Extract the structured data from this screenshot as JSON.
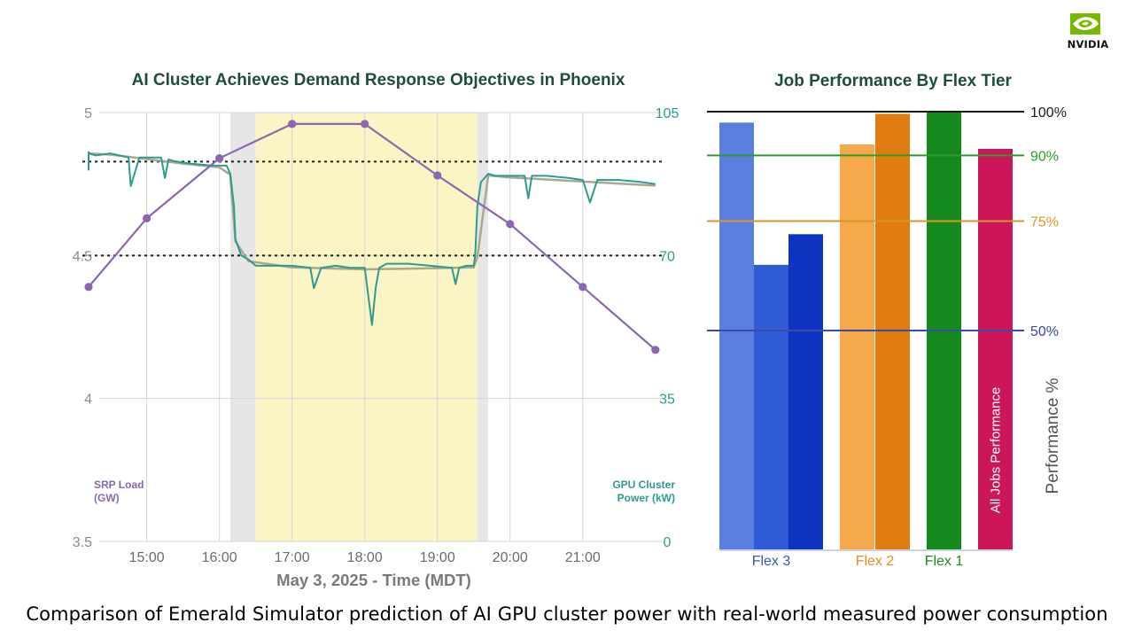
{
  "brand": {
    "logo_text": "NVIDIA",
    "eye_color": "#76b900"
  },
  "caption": "Comparison of Emerald Simulator prediction of AI GPU cluster power with real-world measured power consumption",
  "chart_data": [
    {
      "type": "line",
      "title": "AI Cluster Achieves Demand Response Objectives in Phoenix",
      "xlabel": "May 3, 2025 - Time (MDT)",
      "x_ticks": [
        "15:00",
        "16:00",
        "17:00",
        "18:00",
        "19:00",
        "20:00",
        "21:00"
      ],
      "x_range": [
        14.2,
        22.1
      ],
      "left_axis": {
        "label_line1": "SRP Load",
        "label_line2": "(GW)",
        "ticks": [
          "5",
          "4.5",
          "4",
          "3.5"
        ],
        "range": [
          3.5,
          5.0
        ],
        "color": "#8b67b3"
      },
      "right_axis": {
        "label_line1": "GPU Cluster",
        "label_line2": "Power (kW)",
        "ticks": [
          "105",
          "70",
          "35",
          "0"
        ],
        "range": [
          0,
          105
        ],
        "color": "#2e9a92"
      },
      "shaded_regions": [
        {
          "name": "ramp-down window",
          "from": 16.15,
          "to": 16.5,
          "color": "#e6e6e6"
        },
        {
          "name": "demand response event",
          "from": 16.5,
          "to": 19.55,
          "color": "#fbf4c5"
        },
        {
          "name": "ramp-up window",
          "from": 19.55,
          "to": 19.7,
          "color": "#e6e6e6"
        }
      ],
      "reference_lines": [
        {
          "name": "baseline power level",
          "axis": "right",
          "value": 93
        },
        {
          "name": "reduced power target",
          "axis": "right",
          "value": 70
        }
      ],
      "series": [
        {
          "name": "SRP Load",
          "axis": "left",
          "color": "#8b67b3",
          "x": [
            14.0,
            15.0,
            16.0,
            17.0,
            18.0,
            19.0,
            20.0,
            21.0,
            22.0
          ],
          "y": [
            4.39,
            4.63,
            4.84,
            4.96,
            4.96,
            4.78,
            4.61,
            4.39,
            4.17
          ]
        },
        {
          "name": "GPU Cluster Power (measured)",
          "axis": "right",
          "color": "#2e9a92",
          "x": [
            14.0,
            14.1,
            14.15,
            14.2,
            14.3,
            14.5,
            14.75,
            14.78,
            14.9,
            15.2,
            15.25,
            15.3,
            15.4,
            15.6,
            15.9,
            16.1,
            16.15,
            16.2,
            16.22,
            16.3,
            16.4,
            16.5,
            16.8,
            17.0,
            17.25,
            17.3,
            17.4,
            17.6,
            17.8,
            18.0,
            18.05,
            18.1,
            18.15,
            18.2,
            18.3,
            18.6,
            18.9,
            19.2,
            19.25,
            19.3,
            19.4,
            19.5,
            19.52,
            19.55,
            19.6,
            19.7,
            19.8,
            20.0,
            20.2,
            20.25,
            20.3,
            20.5,
            20.8,
            21.0,
            21.1,
            21.2,
            21.5,
            21.8,
            22.0
          ],
          "y": [
            95.5,
            95,
            91,
            95,
            94.5,
            95,
            94,
            87,
            94,
            94,
            89,
            93.5,
            93,
            92.5,
            92,
            92,
            90,
            82,
            74,
            70,
            69,
            67.5,
            67.5,
            67.5,
            67,
            62,
            67,
            67.5,
            67,
            67,
            60,
            53,
            62,
            67,
            68,
            68,
            67.5,
            67,
            63,
            67,
            67.5,
            67.5,
            70,
            82,
            88,
            90,
            89.5,
            89.5,
            89.5,
            84,
            89.5,
            89.5,
            89,
            88.5,
            83,
            88.5,
            88.5,
            88,
            87.5
          ]
        },
        {
          "name": "GPU Cluster Power (Emerald Simulator prediction)",
          "axis": "right",
          "color": "#aaa890",
          "x": [
            14.0,
            14.5,
            15.0,
            15.5,
            16.0,
            16.15,
            16.22,
            16.4,
            17.0,
            18.0,
            19.0,
            19.5,
            19.55,
            19.7,
            20.0,
            21.0,
            22.0
          ],
          "y": [
            95.0,
            94.7,
            93.6,
            92.5,
            91.6,
            89.8,
            73.5,
            68.6,
            67.1,
            66.6,
            66.9,
            67.1,
            69.6,
            89.6,
            89.1,
            88.1,
            87.1
          ]
        }
      ]
    },
    {
      "type": "bar",
      "title": "Job Performance By Flex Tier",
      "ylabel": "Performance %",
      "ylim": [
        0,
        100
      ],
      "thresholds": [
        {
          "label": "100%",
          "value": 100,
          "color": "#1a1a1a"
        },
        {
          "label": "90%",
          "value": 90,
          "color": "#2d9a2d"
        },
        {
          "label": "75%",
          "value": 75,
          "color": "#d9952a"
        },
        {
          "label": "50%",
          "value": 50,
          "color": "#3a4aa8"
        }
      ],
      "groups": [
        {
          "label": "Flex 3",
          "label_color": "#3a55c0",
          "bars": [
            {
              "value": 97.5,
              "color": "#5b7fe0"
            },
            {
              "value": 65,
              "color": "#2f5bd6"
            },
            {
              "value": 72,
              "color": "#0f34c0"
            }
          ]
        },
        {
          "label": "Flex 2",
          "label_color": "#e78a1e",
          "bars": [
            {
              "value": 92.5,
              "color": "#f5a94a"
            },
            {
              "value": 99.5,
              "color": "#e07c10"
            }
          ]
        },
        {
          "label": "Flex 1",
          "label_color": "#1e8a24",
          "bars": [
            {
              "value": 100,
              "color": "#15891e"
            }
          ]
        },
        {
          "label": "",
          "label_color": "#c8175a",
          "bars": [
            {
              "value": 91.5,
              "color": "#cc165a",
              "inner_label": "All Jobs Performance"
            }
          ]
        }
      ]
    }
  ]
}
